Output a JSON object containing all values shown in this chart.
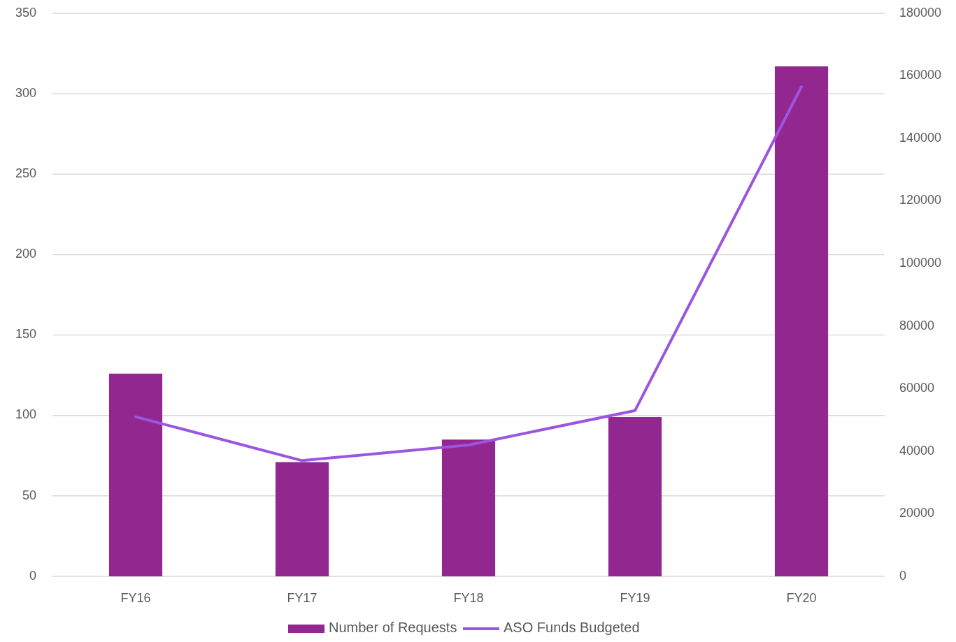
{
  "chart_data": {
    "type": "bar",
    "categories": [
      "FY16",
      "FY17",
      "FY18",
      "FY19",
      "FY20"
    ],
    "series": [
      {
        "name": "Number of Requests",
        "color": "#92278f",
        "values": [
          126,
          71,
          85,
          99,
          317
        ]
      },
      {
        "name": "ASO Funds Budgeted",
        "type": "line",
        "axis": "y2",
        "color": "#9b55e0",
        "values": [
          51000,
          37000,
          42000,
          53000,
          156500
        ]
      }
    ],
    "ylim": [
      0,
      350
    ],
    "yticks": [
      0,
      50,
      100,
      150,
      200,
      250,
      300,
      350
    ],
    "y2lim": [
      0,
      180000
    ],
    "y2ticks": [
      0,
      20000,
      40000,
      60000,
      80000,
      100000,
      120000,
      140000,
      160000,
      180000
    ],
    "grid": "y",
    "legend": "bottom",
    "marker": "none",
    "line_style": "solid"
  }
}
